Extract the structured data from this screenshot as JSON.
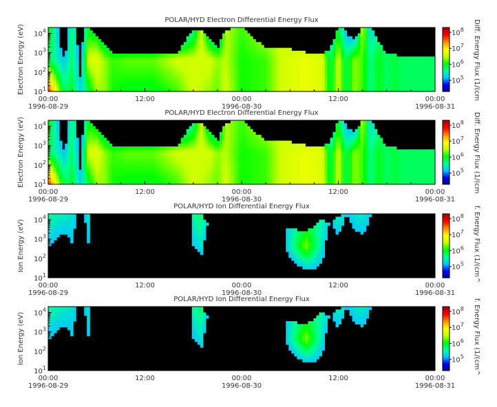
{
  "chart_data": [
    {
      "type": "heatmap",
      "title": "POLAR/HYD  Electron Differential Energy Flux",
      "ylabel": "Electron Energy (eV)",
      "colorbar_label": "Diff. Energy Flux (1/(cm",
      "y_scale": "log",
      "ylim": [
        10,
        20000
      ],
      "y_ticks": [
        {
          "base": "10",
          "exp": "1"
        },
        {
          "base": "10",
          "exp": "2"
        },
        {
          "base": "10",
          "exp": "3"
        },
        {
          "base": "10",
          "exp": "4"
        }
      ],
      "x_ticks": [
        {
          "time": "00:00",
          "date": "1996-08-29"
        },
        {
          "time": "12:00",
          "date": ""
        },
        {
          "time": "00:00",
          "date": "1996-08-30"
        },
        {
          "time": "12:00",
          "date": ""
        },
        {
          "time": "00:00",
          "date": "1996-08-31"
        }
      ],
      "colorbar_ticks": [
        {
          "base": "10",
          "exp": "5"
        },
        {
          "base": "10",
          "exp": "6"
        },
        {
          "base": "10",
          "exp": "7"
        },
        {
          "base": "10",
          "exp": "8"
        }
      ],
      "clim": [
        20000,
        200000000
      ],
      "spectrogram": {
        "hours": [
          0,
          2,
          3,
          4,
          5,
          6,
          7,
          8,
          10,
          13,
          16,
          18,
          19,
          20,
          21,
          22,
          24,
          27,
          29,
          32,
          34,
          35,
          36,
          37,
          38,
          39,
          40,
          41,
          42,
          43,
          44,
          46,
          48
        ],
        "log_flux_low": [
          7.8,
          5.8,
          6.0,
          5.3,
          5.9,
          6.4,
          6.4,
          6.1,
          6.0,
          6.0,
          6.2,
          6.6,
          6.5,
          6.4,
          6.3,
          6.6,
          6.1,
          6.2,
          6.6,
          6.8,
          6.7,
          5.9,
          6.6,
          5.8,
          6.4,
          6.2,
          5.7,
          6.0,
          5.8,
          5.9,
          5.8,
          5.8,
          5.8
        ],
        "log_flux_mid": [
          5.9,
          5.2,
          5.8,
          5.0,
          6.6,
          6.7,
          6.4,
          6.2,
          6.3,
          6.3,
          6.6,
          6.6,
          6.6,
          6.6,
          6.4,
          6.5,
          6.1,
          6.2,
          6.6,
          6.8,
          6.7,
          5.8,
          6.6,
          5.8,
          6.4,
          6.2,
          5.7,
          6.0,
          5.8,
          5.9,
          5.8,
          5.8,
          5.8
        ],
        "log_flux_high": [
          6.2,
          4.6,
          5.8,
          4.6,
          6.0,
          5.8,
          5.3,
          5.0,
          4.8,
          4.8,
          4.8,
          5.6,
          6.6,
          5.5,
          5.0,
          6.5,
          6.2,
          6.6,
          6.5,
          6.0,
          5.8,
          5.0,
          6.0,
          5.0,
          4.6,
          6.6,
          5.3,
          5.6,
          5.8,
          5.9,
          5.8,
          5.8,
          5.8
        ],
        "log_energy_cutoff": [
          4.3,
          4.3,
          4.3,
          4.3,
          4.3,
          3.8,
          3.4,
          2.9,
          2.9,
          2.9,
          3.0,
          4.2,
          4.2,
          3.7,
          3.2,
          4.2,
          4.3,
          3.2,
          3.3,
          3.0,
          3.0,
          3.2,
          4.3,
          4.3,
          3.7,
          4.3,
          4.3,
          3.6,
          2.9,
          2.9,
          2.8,
          2.8,
          2.8
        ]
      }
    },
    {
      "type": "heatmap",
      "title": "POLAR/HYD  Electron Differential Energy Flux",
      "ylabel": "Electron Energy (eV)",
      "colorbar_label": "Diff. Energy Flux (1/(cm",
      "y_scale": "log",
      "ylim": [
        10,
        20000
      ],
      "y_ticks": [
        {
          "base": "10",
          "exp": "1"
        },
        {
          "base": "10",
          "exp": "2"
        },
        {
          "base": "10",
          "exp": "3"
        },
        {
          "base": "10",
          "exp": "4"
        }
      ],
      "x_ticks": [
        {
          "time": "00:00",
          "date": "1996-08-29"
        },
        {
          "time": "12:00",
          "date": ""
        },
        {
          "time": "00:00",
          "date": "1996-08-30"
        },
        {
          "time": "12:00",
          "date": ""
        },
        {
          "time": "00:00",
          "date": "1996-08-31"
        }
      ],
      "colorbar_ticks": [
        {
          "base": "10",
          "exp": "5"
        },
        {
          "base": "10",
          "exp": "6"
        },
        {
          "base": "10",
          "exp": "7"
        },
        {
          "base": "10",
          "exp": "8"
        }
      ],
      "clim": [
        20000,
        200000000
      ],
      "spectrogram": {
        "hours": [
          0,
          2,
          3,
          4,
          5,
          6,
          7,
          8,
          10,
          13,
          16,
          18,
          19,
          20,
          21,
          22,
          24,
          27,
          29,
          32,
          34,
          35,
          36,
          37,
          38,
          39,
          40,
          41,
          42,
          43,
          44,
          46,
          48
        ],
        "log_flux_low": [
          7.8,
          5.8,
          6.0,
          5.3,
          5.9,
          6.4,
          6.4,
          6.1,
          6.0,
          6.0,
          6.2,
          6.6,
          6.5,
          6.4,
          6.3,
          6.6,
          6.1,
          6.2,
          6.6,
          6.8,
          6.7,
          5.9,
          6.6,
          5.8,
          6.4,
          6.2,
          5.7,
          6.0,
          5.8,
          5.9,
          5.8,
          5.8,
          5.8
        ],
        "log_flux_mid": [
          5.9,
          5.2,
          5.8,
          5.0,
          6.6,
          6.7,
          6.4,
          6.2,
          6.3,
          6.3,
          6.6,
          6.6,
          6.6,
          6.6,
          6.4,
          6.5,
          6.1,
          6.2,
          6.6,
          6.8,
          6.7,
          5.8,
          6.6,
          5.8,
          6.4,
          6.2,
          5.7,
          6.0,
          5.8,
          5.9,
          5.8,
          5.8,
          5.8
        ],
        "log_flux_high": [
          6.2,
          4.6,
          5.8,
          4.6,
          6.0,
          5.8,
          5.3,
          5.0,
          4.8,
          4.8,
          4.8,
          5.6,
          6.6,
          5.5,
          5.0,
          6.5,
          6.2,
          6.6,
          6.5,
          6.0,
          5.8,
          5.0,
          6.0,
          5.0,
          4.6,
          6.6,
          5.3,
          5.6,
          5.8,
          5.9,
          5.8,
          5.8,
          5.8
        ],
        "log_energy_cutoff": [
          4.3,
          4.3,
          4.3,
          4.3,
          4.3,
          3.8,
          3.4,
          2.9,
          2.9,
          2.9,
          3.0,
          4.2,
          4.2,
          3.7,
          3.2,
          4.2,
          4.3,
          3.2,
          3.3,
          3.0,
          3.0,
          3.2,
          4.3,
          4.3,
          3.7,
          4.3,
          4.3,
          3.6,
          2.9,
          2.9,
          2.8,
          2.8,
          2.8
        ]
      }
    },
    {
      "type": "heatmap",
      "title": "POLAR/HYD  Ion Differential Energy Flux",
      "ylabel": "Ion Energy (eV)",
      "colorbar_label": "f. Energy Flux (1/(cm^",
      "y_scale": "log",
      "ylim": [
        10,
        20000
      ],
      "y_ticks": [
        {
          "base": "10",
          "exp": "1"
        },
        {
          "base": "10",
          "exp": "2"
        },
        {
          "base": "10",
          "exp": "3"
        },
        {
          "base": "10",
          "exp": "4"
        }
      ],
      "x_ticks": [
        {
          "time": "00:00",
          "date": "1996-08-29"
        },
        {
          "time": "12:00",
          "date": ""
        },
        {
          "time": "00:00",
          "date": "1996-08-30"
        },
        {
          "time": "12:00",
          "date": ""
        },
        {
          "time": "00:00",
          "date": "1996-08-31"
        }
      ],
      "colorbar_ticks": [
        {
          "base": "10",
          "exp": "5"
        },
        {
          "base": "10",
          "exp": "6"
        },
        {
          "base": "10",
          "exp": "7"
        },
        {
          "base": "10",
          "exp": "8"
        }
      ],
      "clim": [
        20000,
        200000000
      ],
      "spectrogram": {
        "hours": [
          0,
          2,
          3,
          4,
          5,
          6,
          7,
          8,
          10,
          13,
          16,
          18,
          19,
          20,
          21,
          22,
          24,
          27,
          29,
          32,
          34,
          35,
          36,
          37,
          38,
          39,
          40,
          41,
          42,
          43,
          44,
          46,
          48
        ],
        "log_flux_low": [
          4.3,
          4.6,
          4.8,
          4.6,
          4.8,
          4.5,
          3.0,
          3.0,
          3.0,
          3.0,
          3.0,
          4.6,
          4.8,
          3.0,
          3.0,
          4.5,
          4.6,
          4.8,
          4.6,
          4.8,
          5.0,
          4.5,
          4.6,
          4.5,
          4.6,
          4.8,
          4.9,
          4.7,
          3.0,
          3.0,
          3.0,
          3.0,
          3.0
        ],
        "log_flux_mid": [
          5.2,
          5.0,
          5.2,
          4.8,
          5.2,
          4.6,
          3.0,
          3.0,
          3.0,
          3.0,
          3.0,
          5.2,
          5.4,
          4.7,
          3.0,
          4.7,
          4.8,
          5.0,
          5.0,
          6.4,
          5.4,
          4.8,
          5.0,
          4.8,
          5.0,
          5.0,
          5.0,
          4.8,
          3.0,
          3.0,
          3.0,
          3.0,
          3.0
        ],
        "log_flux_high": [
          5.6,
          5.5,
          5.4,
          5.0,
          5.4,
          4.8,
          3.0,
          3.0,
          3.0,
          3.0,
          3.0,
          5.6,
          5.8,
          5.2,
          4.6,
          5.3,
          5.0,
          5.2,
          5.2,
          5.6,
          5.6,
          5.3,
          5.6,
          5.2,
          5.4,
          5.5,
          5.2,
          5.0,
          3.0,
          3.0,
          3.0,
          3.0,
          3.0
        ],
        "log_energy_cutoff": [
          4.3,
          4.3,
          4.3,
          4.3,
          4.3,
          4.0,
          2.0,
          2.0,
          2.0,
          2.0,
          2.0,
          4.3,
          4.3,
          3.6,
          3.2,
          4.0,
          4.2,
          4.3,
          3.6,
          3.4,
          4.0,
          3.8,
          4.2,
          4.3,
          4.3,
          4.3,
          4.3,
          3.8,
          2.0,
          2.0,
          2.0,
          2.0,
          2.0
        ]
      }
    },
    {
      "type": "heatmap",
      "title": "POLAR/HYD  Ion Differential Energy Flux",
      "ylabel": "Ion Energy (eV)",
      "colorbar_label": "f. Energy Flux (1/(cm^",
      "y_scale": "log",
      "ylim": [
        10,
        20000
      ],
      "y_ticks": [
        {
          "base": "10",
          "exp": "1"
        },
        {
          "base": "10",
          "exp": "2"
        },
        {
          "base": "10",
          "exp": "3"
        },
        {
          "base": "10",
          "exp": "4"
        }
      ],
      "x_ticks": [
        {
          "time": "00:00",
          "date": "1996-08-29"
        },
        {
          "time": "12:00",
          "date": ""
        },
        {
          "time": "00:00",
          "date": "1996-08-30"
        },
        {
          "time": "12:00",
          "date": ""
        },
        {
          "time": "00:00",
          "date": "1996-08-31"
        }
      ],
      "colorbar_ticks": [
        {
          "base": "10",
          "exp": "5"
        },
        {
          "base": "10",
          "exp": "6"
        },
        {
          "base": "10",
          "exp": "7"
        },
        {
          "base": "10",
          "exp": "8"
        }
      ],
      "clim": [
        20000,
        200000000
      ],
      "spectrogram": {
        "hours": [
          0,
          2,
          3,
          4,
          5,
          6,
          7,
          8,
          10,
          13,
          16,
          18,
          19,
          20,
          21,
          22,
          24,
          27,
          29,
          32,
          34,
          35,
          36,
          37,
          38,
          39,
          40,
          41,
          42,
          43,
          44,
          46,
          48
        ],
        "log_flux_low": [
          4.3,
          4.6,
          4.8,
          4.6,
          4.8,
          4.5,
          3.0,
          3.0,
          3.0,
          3.0,
          3.0,
          4.6,
          4.8,
          3.0,
          3.0,
          4.5,
          4.6,
          4.8,
          4.6,
          4.8,
          5.0,
          4.5,
          4.6,
          4.5,
          4.6,
          4.8,
          4.9,
          4.7,
          3.0,
          3.0,
          3.0,
          3.0,
          3.0
        ],
        "log_flux_mid": [
          5.2,
          5.0,
          5.2,
          4.8,
          5.2,
          4.6,
          3.0,
          3.0,
          3.0,
          3.0,
          3.0,
          5.2,
          5.4,
          4.7,
          3.0,
          4.7,
          4.8,
          5.0,
          5.0,
          6.4,
          5.4,
          4.8,
          5.0,
          4.8,
          5.0,
          5.0,
          5.0,
          4.8,
          3.0,
          3.0,
          3.0,
          3.0,
          3.0
        ],
        "log_flux_high": [
          5.6,
          5.5,
          5.4,
          5.0,
          5.4,
          4.8,
          3.0,
          3.0,
          3.0,
          3.0,
          3.0,
          5.6,
          5.8,
          5.2,
          4.6,
          5.3,
          5.0,
          5.2,
          5.2,
          5.6,
          5.6,
          5.3,
          5.6,
          5.2,
          5.4,
          5.5,
          5.2,
          5.0,
          3.0,
          3.0,
          3.0,
          3.0,
          3.0
        ],
        "log_energy_cutoff": [
          4.3,
          4.3,
          4.3,
          4.3,
          4.3,
          4.0,
          2.0,
          2.0,
          2.0,
          2.0,
          2.0,
          4.3,
          4.3,
          3.6,
          3.2,
          4.0,
          4.2,
          4.3,
          3.6,
          3.4,
          4.0,
          3.8,
          4.2,
          4.3,
          4.3,
          4.3,
          4.3,
          3.8,
          2.0,
          2.0,
          2.0,
          2.0,
          2.0
        ]
      }
    }
  ],
  "colors": {
    "background": "#ffffff",
    "text": "#333333",
    "axis": "#000000",
    "no_data": "#000000",
    "colormap": [
      "#00007a",
      "#0000ff",
      "#00c8ff",
      "#00ff96",
      "#00ff00",
      "#c8ff00",
      "#ffff00",
      "#ff8c00",
      "#ff0000",
      "#a00000"
    ]
  }
}
